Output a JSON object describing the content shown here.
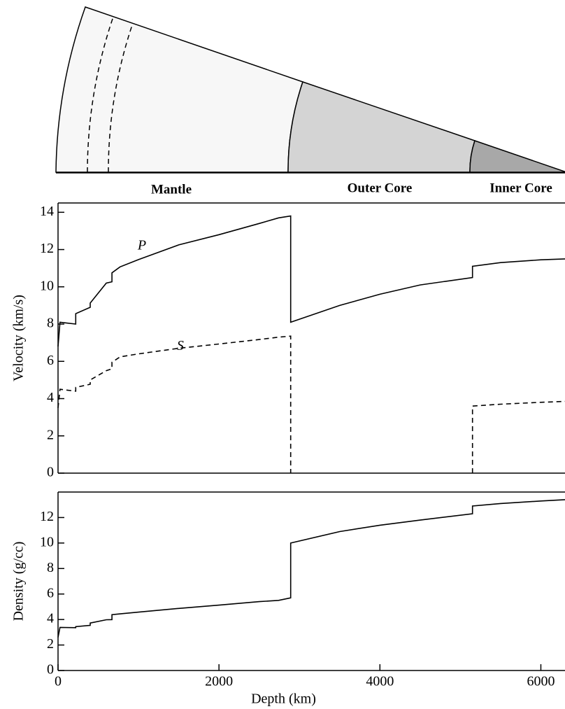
{
  "diagram": {
    "regions": [
      "Mantle",
      "Outer Core",
      "Inner Core"
    ]
  },
  "chart_data": [
    {
      "type": "line",
      "ylabel": "Velocity (km/s)",
      "x": [
        0,
        24,
        220,
        220,
        400,
        400,
        600,
        670,
        670,
        771,
        1000,
        1500,
        2000,
        2500,
        2741,
        2891,
        2891,
        3500,
        4000,
        4500,
        5150,
        5150,
        5500,
        6000,
        6300
      ],
      "series": [
        {
          "name": "P",
          "color": "#000000",
          "line_style": "solid",
          "values": [
            6.8,
            8.1,
            8.0,
            8.56,
            8.9,
            9.13,
            10.2,
            10.27,
            10.75,
            11.07,
            11.46,
            12.25,
            12.8,
            13.4,
            13.7,
            13.8,
            8.1,
            9.0,
            9.6,
            10.1,
            10.5,
            11.1,
            11.3,
            11.45,
            11.5
          ]
        },
        {
          "name": "S",
          "color": "#000000",
          "line_style": "dashed",
          "values": [
            3.5,
            4.5,
            4.4,
            4.6,
            4.77,
            5.0,
            5.5,
            5.6,
            5.95,
            6.24,
            6.4,
            6.7,
            6.93,
            7.17,
            7.3,
            7.35,
            0,
            null,
            null,
            null,
            0,
            3.6,
            3.7,
            3.8,
            3.85
          ]
        }
      ],
      "xlim": [
        0,
        6300
      ],
      "ylim": [
        0,
        14.5
      ],
      "yticks": [
        0,
        2,
        4,
        6,
        8,
        10,
        12,
        14
      ]
    },
    {
      "type": "line",
      "ylabel": "Density (g/cc)",
      "xlabel": "Depth (km)",
      "x": [
        0,
        24,
        220,
        220,
        400,
        400,
        600,
        670,
        670,
        771,
        1000,
        1500,
        2000,
        2500,
        2741,
        2891,
        2891,
        3500,
        4000,
        4500,
        5150,
        5150,
        5500,
        6000,
        6300
      ],
      "series": [
        {
          "color": "#000000",
          "line_style": "solid",
          "values": [
            2.6,
            3.38,
            3.36,
            3.44,
            3.54,
            3.72,
            3.98,
            3.99,
            4.38,
            4.44,
            4.58,
            4.87,
            5.13,
            5.4,
            5.5,
            5.7,
            10.0,
            10.9,
            11.4,
            11.8,
            12.3,
            12.9,
            13.1,
            13.3,
            13.4
          ]
        }
      ],
      "xlim": [
        0,
        6300
      ],
      "ylim": [
        0,
        14
      ],
      "yticks": [
        0,
        2,
        4,
        6,
        8,
        10,
        12
      ],
      "xticks": [
        0,
        2000,
        4000,
        6000
      ]
    }
  ]
}
